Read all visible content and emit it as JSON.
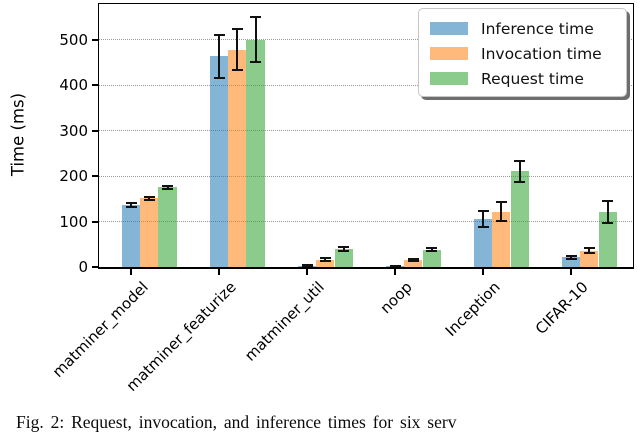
{
  "figure": {
    "caption": "Fig. 2: Request, invocation, and inference times for six serv"
  },
  "chart_data": {
    "type": "bar",
    "title": "",
    "xlabel": "",
    "ylabel": "Time (ms)",
    "ylim": [
      0,
      578
    ],
    "yticks": [
      0,
      100,
      200,
      300,
      400,
      500
    ],
    "grid": true,
    "legend_position": "upper right",
    "categories": [
      "matminer_model",
      "matminer_featurize",
      "matminer_util",
      "noop",
      "Inception",
      "CIFAR-10"
    ],
    "series": [
      {
        "name": "Inference time",
        "color": "rgba(31,119,180,0.55)",
        "values": [
          136,
          463,
          2,
          1.5,
          106,
          21
        ],
        "errors": [
          4,
          48,
          1.5,
          1,
          18,
          3
        ]
      },
      {
        "name": "Invocation time",
        "color": "rgba(255,127,14,0.55)",
        "values": [
          151,
          478,
          16,
          15,
          122,
          36
        ],
        "errors": [
          4,
          46,
          3,
          2,
          20,
          5
        ]
      },
      {
        "name": "Request time",
        "color": "rgba(44,160,44,0.55)",
        "values": [
          175,
          500,
          40,
          38,
          211,
          121
        ],
        "errors": [
          4,
          50,
          4,
          3,
          23,
          25
        ]
      }
    ]
  }
}
